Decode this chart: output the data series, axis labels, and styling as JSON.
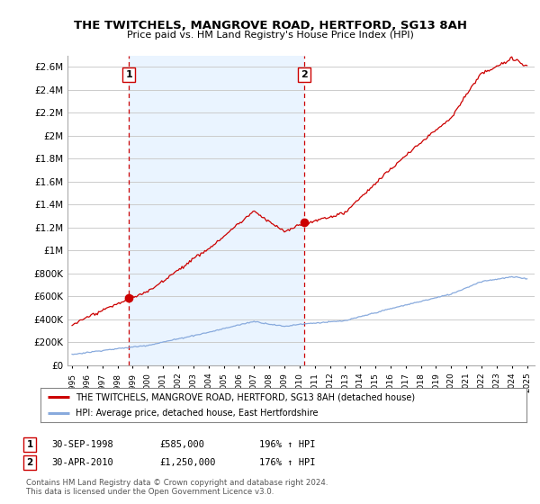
{
  "title": "THE TWITCHELS, MANGROVE ROAD, HERTFORD, SG13 8AH",
  "subtitle": "Price paid vs. HM Land Registry's House Price Index (HPI)",
  "ylabel_ticks": [
    "£0",
    "£200K",
    "£400K",
    "£600K",
    "£800K",
    "£1M",
    "£1.2M",
    "£1.4M",
    "£1.6M",
    "£1.8M",
    "£2M",
    "£2.2M",
    "£2.4M",
    "£2.6M"
  ],
  "ytick_values": [
    0,
    200000,
    400000,
    600000,
    800000,
    1000000,
    1200000,
    1400000,
    1600000,
    1800000,
    2000000,
    2200000,
    2400000,
    2600000
  ],
  "ylim": [
    0,
    2700000
  ],
  "xlim_start": 1994.7,
  "xlim_end": 2025.5,
  "sale1_x": 1998.75,
  "sale1_y": 585000,
  "sale2_x": 2010.33,
  "sale2_y": 1250000,
  "sale_color": "#cc0000",
  "hpi_color": "#88aadd",
  "vline_color": "#cc0000",
  "grid_color": "#cccccc",
  "shading_color": "#ddeeff",
  "legend_label_red": "THE TWITCHELS, MANGROVE ROAD, HERTFORD, SG13 8AH (detached house)",
  "legend_label_blue": "HPI: Average price, detached house, East Hertfordshire",
  "table_row1": [
    "1",
    "30-SEP-1998",
    "£585,000",
    "196% ↑ HPI"
  ],
  "table_row2": [
    "2",
    "30-APR-2010",
    "£1,250,000",
    "176% ↑ HPI"
  ],
  "footnote": "Contains HM Land Registry data © Crown copyright and database right 2024.\nThis data is licensed under the Open Government Licence v3.0.",
  "bg_color": "#ffffff"
}
